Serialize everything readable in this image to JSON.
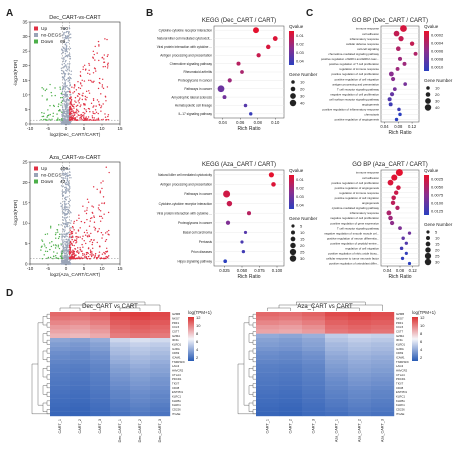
{
  "panel_labels": [
    "A",
    "B",
    "C",
    "D"
  ],
  "chart_data": [
    {
      "id": "volcano-dec",
      "type": "scatter",
      "title": "Dec_CART-vs-CART",
      "xlabel": "log2(Dec_CART/CART)",
      "ylabel": "-log10(FDR)",
      "xlim": [
        -10,
        15
      ],
      "ylim": [
        0,
        35
      ],
      "xticks": [
        -10,
        -5,
        0,
        5,
        10,
        15
      ],
      "yticks": [
        0,
        5,
        10,
        15,
        20,
        25,
        30,
        35
      ],
      "legend_position": "top-left",
      "series": [
        {
          "name": "Up",
          "count": "760",
          "color": "#e03043"
        },
        {
          "name": "no-DEGS",
          "count": "",
          "color": "#9aa5b8"
        },
        {
          "name": "Down",
          "count": "69",
          "color": "#4daf4a"
        }
      ]
    },
    {
      "id": "volcano-aza",
      "type": "scatter",
      "title": "Aza_CART-vs-CART",
      "xlabel": "log2(Aza_CART/CART)",
      "ylabel": "-log10(FDR)",
      "xlim": [
        -10,
        15
      ],
      "ylim": [
        0,
        25
      ],
      "xticks": [
        -10,
        -5,
        0,
        5,
        10,
        15
      ],
      "yticks": [
        0,
        5,
        10,
        15,
        20,
        25
      ],
      "legend_position": "top-left",
      "series": [
        {
          "name": "Up",
          "count": "406",
          "color": "#e03043"
        },
        {
          "name": "no-DEGS",
          "count": "",
          "color": "#9aa5b8"
        },
        {
          "name": "Down",
          "count": "42",
          "color": "#4daf4a"
        }
      ]
    },
    {
      "id": "kegg-dec",
      "type": "scatter",
      "title": "KEGG (Dec_CART / CART)",
      "xlabel": "Rich Ratio",
      "xticks": [
        "0.04",
        "0.06",
        "0.08",
        "0.10"
      ],
      "xlim": [
        0.03,
        0.11
      ],
      "legend_position": "right",
      "colorbar_title": "Qvalue",
      "colorbar_ticks": [
        "0.01",
        "0.02",
        "0.03",
        "0.04"
      ],
      "size_title": "Gene Number",
      "size_levels": [
        "10",
        "20",
        "30",
        "40"
      ],
      "categories": [
        "Cytokine-cytokine receptor interaction",
        "Natural killer cell mediated cytotoxicit...",
        "Viral protein interaction with cytokine ...",
        "Antigen processing and presentation",
        "Chemokine signaling pathway",
        "Rheumatoid arthritis",
        "Proteoglycans in cancer",
        "Pathways in cancer",
        "Amyotrophic lateral sclerosis",
        "Hematopoietic cell lineage",
        "IL-17 signaling pathway"
      ],
      "points": [
        {
          "x": 0.078,
          "q": 0.001,
          "n": 32
        },
        {
          "x": 0.1,
          "q": 0.003,
          "n": 22
        },
        {
          "x": 0.092,
          "q": 0.004,
          "n": 19
        },
        {
          "x": 0.081,
          "q": 0.008,
          "n": 17
        },
        {
          "x": 0.058,
          "q": 0.012,
          "n": 15
        },
        {
          "x": 0.062,
          "q": 0.015,
          "n": 12
        },
        {
          "x": 0.048,
          "q": 0.018,
          "n": 16
        },
        {
          "x": 0.038,
          "q": 0.03,
          "n": 40
        },
        {
          "x": 0.042,
          "q": 0.028,
          "n": 14
        },
        {
          "x": 0.066,
          "q": 0.035,
          "n": 10
        },
        {
          "x": 0.072,
          "q": 0.042,
          "n": 9
        }
      ]
    },
    {
      "id": "gobp-dec",
      "type": "scatter",
      "title": "GO BP (Dec_CART / CART)",
      "xlabel": "Rich Ratio",
      "xticks": [
        "0.04",
        "0.08",
        "0.12"
      ],
      "xlim": [
        0.03,
        0.14
      ],
      "legend_position": "right",
      "colorbar_title": "Qvalue",
      "colorbar_ticks": [
        "0.0002",
        "0.0004",
        "0.0006",
        "0.0008",
        "0.0010"
      ],
      "size_title": "Gene Number",
      "size_levels": [
        "10",
        "20",
        "30",
        "40"
      ],
      "categories": [
        "immune response",
        "cell adhesion",
        "inflammatory response",
        "cellular defense response",
        "cell-cell signaling",
        "chemokine-mediated signaling pathway",
        "positive regulation of ERK1 and ERK2 casc...",
        "positive regulation of T cell proliferation",
        "regulation of immune response",
        "positive regulation of cell proliferation",
        "positive regulation of cell migration",
        "antigen processing and presentation",
        "T cell receptor signaling pathway",
        "negative regulation of cell proliferation",
        "cell surface receptor signaling pathway",
        "angiogenesis",
        "positive regulation of inflammatory response",
        "chemotaxis",
        "positive regulation of angiogenesis"
      ],
      "points": [
        {
          "x": 0.095,
          "q": 0.0001,
          "n": 40
        },
        {
          "x": 0.075,
          "q": 0.0002,
          "n": 30
        },
        {
          "x": 0.088,
          "q": 0.0002,
          "n": 26
        },
        {
          "x": 0.12,
          "q": 0.0002,
          "n": 18
        },
        {
          "x": 0.08,
          "q": 0.0003,
          "n": 20
        },
        {
          "x": 0.13,
          "q": 0.0003,
          "n": 14
        },
        {
          "x": 0.085,
          "q": 0.0004,
          "n": 15
        },
        {
          "x": 0.098,
          "q": 0.0004,
          "n": 14
        },
        {
          "x": 0.078,
          "q": 0.0004,
          "n": 13
        },
        {
          "x": 0.06,
          "q": 0.0005,
          "n": 22
        },
        {
          "x": 0.065,
          "q": 0.0005,
          "n": 16
        },
        {
          "x": 0.1,
          "q": 0.0006,
          "n": 11
        },
        {
          "x": 0.07,
          "q": 0.0006,
          "n": 12
        },
        {
          "x": 0.062,
          "q": 0.0007,
          "n": 16
        },
        {
          "x": 0.055,
          "q": 0.0008,
          "n": 15
        },
        {
          "x": 0.058,
          "q": 0.0009,
          "n": 14
        },
        {
          "x": 0.082,
          "q": 0.0009,
          "n": 10
        },
        {
          "x": 0.085,
          "q": 0.001,
          "n": 10
        },
        {
          "x": 0.075,
          "q": 0.001,
          "n": 9
        }
      ]
    },
    {
      "id": "kegg-aza",
      "type": "scatter",
      "title": "KEGG (Aza_CART / CART)",
      "xlabel": "Rich Ratio",
      "xticks": [
        "0.025",
        "0.050",
        "0.075",
        "0.100"
      ],
      "xlim": [
        0.01,
        0.11
      ],
      "legend_position": "right",
      "colorbar_title": "Qvalue",
      "colorbar_ticks": [
        "0.01",
        "0.02",
        "0.03",
        "0.04"
      ],
      "size_title": "Gene Number",
      "size_levels": [
        "5",
        "10",
        "15",
        "20",
        "25",
        "30"
      ],
      "categories": [
        "Natural killer cell mediated cytotoxicity",
        "Antigen processing and presentation",
        "Pathways in cancer",
        "Cytokine-cytokine receptor interaction",
        "Viral protein interaction with cytokine ...",
        "Proteoglycans in cancer",
        "Basal cell carcinoma",
        "Pertussis",
        "Prion diseases",
        "Hippo signaling pathway"
      ],
      "points": [
        {
          "x": 0.092,
          "q": 0.001,
          "n": 18
        },
        {
          "x": 0.095,
          "q": 0.003,
          "n": 14
        },
        {
          "x": 0.028,
          "q": 0.006,
          "n": 30
        },
        {
          "x": 0.032,
          "q": 0.008,
          "n": 20
        },
        {
          "x": 0.06,
          "q": 0.012,
          "n": 11
        },
        {
          "x": 0.03,
          "q": 0.025,
          "n": 12
        },
        {
          "x": 0.055,
          "q": 0.035,
          "n": 5
        },
        {
          "x": 0.05,
          "q": 0.038,
          "n": 5
        },
        {
          "x": 0.052,
          "q": 0.04,
          "n": 6
        },
        {
          "x": 0.026,
          "q": 0.045,
          "n": 8
        }
      ]
    },
    {
      "id": "gobp-aza",
      "type": "scatter",
      "title": "GO BP (Aza_CART / CART)",
      "xlabel": "Rich Ratio",
      "xticks": [
        "0.04",
        "0.08",
        "0.12"
      ],
      "xlim": [
        0.02,
        0.14
      ],
      "legend_position": "right",
      "colorbar_title": "Qvalue",
      "colorbar_ticks": [
        "0.0025",
        "0.0050",
        "0.0075",
        "0.0100",
        "0.0125"
      ],
      "size_title": "Gene Number",
      "size_levels": [
        "5",
        "10",
        "15",
        "20",
        "25",
        "30"
      ],
      "categories": [
        "immune response",
        "cell adhesion",
        "positive regulation of cell proliferation",
        "positive regulation of angiogenesis",
        "regulation of immune response",
        "positive regulation of cell migration",
        "angiogenesis",
        "cytokine-mediated signaling pathway",
        "inflammatory response",
        "negative regulation of cell proliferation",
        "positive regulation of gene expression",
        "T cell receptor signaling pathway",
        "negative regulation of smooth muscle cel...",
        "positive regulation of neuron differentia...",
        "positive regulation of peptidyl-serine...",
        "regulation of cell migration",
        "positive regulation of nitric oxide biosy...",
        "cellular response to tumor necrosis factor",
        "positive regulation of osteoblast differ..."
      ],
      "points": [
        {
          "x": 0.078,
          "q": 0.0003,
          "n": 30
        },
        {
          "x": 0.062,
          "q": 0.0006,
          "n": 24
        },
        {
          "x": 0.05,
          "q": 0.001,
          "n": 22
        },
        {
          "x": 0.075,
          "q": 0.0015,
          "n": 14
        },
        {
          "x": 0.068,
          "q": 0.002,
          "n": 13
        },
        {
          "x": 0.06,
          "q": 0.0025,
          "n": 14
        },
        {
          "x": 0.058,
          "q": 0.003,
          "n": 13
        },
        {
          "x": 0.072,
          "q": 0.0035,
          "n": 12
        },
        {
          "x": 0.045,
          "q": 0.004,
          "n": 16
        },
        {
          "x": 0.05,
          "q": 0.005,
          "n": 14
        },
        {
          "x": 0.055,
          "q": 0.006,
          "n": 12
        },
        {
          "x": 0.08,
          "q": 0.007,
          "n": 9
        },
        {
          "x": 0.11,
          "q": 0.008,
          "n": 6
        },
        {
          "x": 0.09,
          "q": 0.009,
          "n": 7
        },
        {
          "x": 0.1,
          "q": 0.01,
          "n": 6
        },
        {
          "x": 0.085,
          "q": 0.011,
          "n": 7
        },
        {
          "x": 0.1,
          "q": 0.012,
          "n": 5
        },
        {
          "x": 0.088,
          "q": 0.012,
          "n": 6
        },
        {
          "x": 0.11,
          "q": 0.013,
          "n": 5
        }
      ]
    },
    {
      "id": "heatmap-dec",
      "type": "heatmap",
      "title": "Dec_CART vs CART",
      "colorbar_title": "log(TPM+1)",
      "colorbar_ticks": [
        "12",
        "10",
        "8",
        "6",
        "4",
        "2"
      ],
      "zlim": [
        0,
        13
      ],
      "columns": [
        "CART_1",
        "CART_2",
        "CART_3",
        "Dec_CART_1",
        "Dec_CART_2",
        "Dec_CART_3"
      ],
      "rows": [
        "GZMB",
        "NKG7",
        "PRF1",
        "CCL5",
        "CST7",
        "GZMA",
        "IFNG",
        "KLRD1",
        "IL2RA",
        "CD69",
        "ICAM1",
        "TNFRSF9",
        "LAG3",
        "HAVCR2",
        "CTLA4",
        "PDCD1",
        "TIGIT",
        "CD38",
        "ENTPD1",
        "KLRC1",
        "KLRB1",
        "KLRK1",
        "CD226",
        "ITGAE"
      ],
      "values": [
        [
          11.2,
          11.0,
          11.4,
          12.4,
          12.6,
          12.3
        ],
        [
          10.8,
          10.6,
          11.0,
          12.0,
          12.3,
          12.1
        ],
        [
          10.2,
          10.0,
          10.5,
          11.6,
          11.9,
          11.7
        ],
        [
          9.6,
          9.4,
          9.9,
          11.2,
          11.5,
          11.3
        ],
        [
          9.2,
          9.0,
          9.5,
          10.9,
          11.2,
          11.0
        ],
        [
          8.7,
          8.5,
          9.0,
          10.5,
          10.8,
          10.6
        ],
        [
          3.2,
          3.0,
          3.5,
          5.2,
          5.6,
          5.4
        ],
        [
          2.8,
          2.6,
          3.0,
          4.6,
          5.0,
          4.8
        ],
        [
          2.5,
          2.4,
          2.8,
          4.2,
          4.6,
          4.4
        ],
        [
          2.2,
          2.0,
          2.4,
          4.0,
          4.4,
          4.1
        ],
        [
          2.0,
          1.9,
          2.2,
          3.6,
          4.0,
          3.8
        ],
        [
          1.8,
          1.7,
          2.0,
          3.4,
          3.8,
          3.5
        ],
        [
          1.6,
          1.5,
          1.8,
          3.0,
          3.5,
          3.2
        ],
        [
          1.5,
          1.4,
          1.7,
          2.8,
          3.2,
          3.0
        ],
        [
          1.4,
          1.3,
          1.6,
          2.6,
          3.0,
          2.8
        ],
        [
          1.3,
          1.2,
          1.5,
          2.4,
          2.8,
          2.5
        ],
        [
          1.2,
          1.1,
          1.4,
          2.2,
          2.6,
          2.4
        ],
        [
          1.1,
          1.0,
          1.3,
          2.0,
          2.4,
          2.2
        ],
        [
          1.0,
          0.9,
          1.2,
          1.8,
          2.2,
          2.0
        ],
        [
          0.9,
          0.8,
          1.1,
          1.7,
          2.0,
          1.8
        ],
        [
          0.8,
          0.7,
          1.0,
          1.5,
          1.9,
          1.7
        ],
        [
          0.7,
          0.6,
          0.9,
          1.4,
          1.7,
          1.5
        ],
        [
          0.6,
          0.5,
          0.8,
          1.2,
          1.5,
          1.3
        ],
        [
          0.5,
          0.4,
          0.7,
          1.0,
          1.3,
          1.1
        ]
      ]
    },
    {
      "id": "heatmap-aza",
      "type": "heatmap",
      "title": "Aza_CART vs CART",
      "colorbar_title": "log(TPM+1)",
      "colorbar_ticks": [
        "12",
        "10",
        "8",
        "6",
        "4",
        "2"
      ],
      "zlim": [
        0,
        13
      ],
      "columns": [
        "CART_1",
        "CART_2",
        "CART_3",
        "Aza_CART_1",
        "Aza_CART_2",
        "Aza_CART_3"
      ],
      "rows": [
        "GZMB",
        "NKG7",
        "PRF1",
        "CCL5",
        "CST7",
        "GZMA",
        "IFNG",
        "KLRD1",
        "IL2RA",
        "CD69",
        "ICAM1",
        "TNFRSF9",
        "LAG3",
        "HAVCR2",
        "CTLA4",
        "PDCD1",
        "TIGIT",
        "CD38",
        "ENTPD1",
        "KLRC1",
        "KLRB1",
        "KLRK1",
        "CD226",
        "ITGAE"
      ],
      "values": [
        [
          11.2,
          11.0,
          11.4,
          12.2,
          12.4,
          12.1
        ],
        [
          10.8,
          10.6,
          11.0,
          11.8,
          12.1,
          11.9
        ],
        [
          10.2,
          10.0,
          10.5,
          11.4,
          11.7,
          11.5
        ],
        [
          9.6,
          9.4,
          9.9,
          11.0,
          11.3,
          11.1
        ],
        [
          9.2,
          9.0,
          9.5,
          10.7,
          11.0,
          10.8
        ],
        [
          3.4,
          3.2,
          3.6,
          4.8,
          5.2,
          5.0
        ],
        [
          3.0,
          2.8,
          3.2,
          4.4,
          4.8,
          4.6
        ],
        [
          2.8,
          2.6,
          3.0,
          4.0,
          4.4,
          4.2
        ],
        [
          2.5,
          2.4,
          2.8,
          3.8,
          4.2,
          4.0
        ],
        [
          2.2,
          2.0,
          2.4,
          3.5,
          3.9,
          3.7
        ],
        [
          2.0,
          1.9,
          2.2,
          3.2,
          3.6,
          3.4
        ],
        [
          1.8,
          1.7,
          2.0,
          3.0,
          3.4,
          3.2
        ],
        [
          1.6,
          1.5,
          1.8,
          2.8,
          3.2,
          3.0
        ],
        [
          1.5,
          1.4,
          1.7,
          2.6,
          3.0,
          2.8
        ],
        [
          1.4,
          1.3,
          1.6,
          2.4,
          2.8,
          2.6
        ],
        [
          1.3,
          1.2,
          1.5,
          2.2,
          2.6,
          2.4
        ],
        [
          1.2,
          1.1,
          1.4,
          2.0,
          2.4,
          2.2
        ],
        [
          1.1,
          1.0,
          1.3,
          1.9,
          2.2,
          2.0
        ],
        [
          1.0,
          0.9,
          1.2,
          1.7,
          2.0,
          1.8
        ],
        [
          0.9,
          0.8,
          1.1,
          1.6,
          1.9,
          1.7
        ],
        [
          0.8,
          0.7,
          1.0,
          1.4,
          1.7,
          1.5
        ],
        [
          0.7,
          0.6,
          0.9,
          1.3,
          1.6,
          1.4
        ],
        [
          0.6,
          0.5,
          0.8,
          1.1,
          1.4,
          1.2
        ],
        [
          0.5,
          0.4,
          0.7,
          0.9,
          1.2,
          1.0
        ]
      ]
    }
  ]
}
